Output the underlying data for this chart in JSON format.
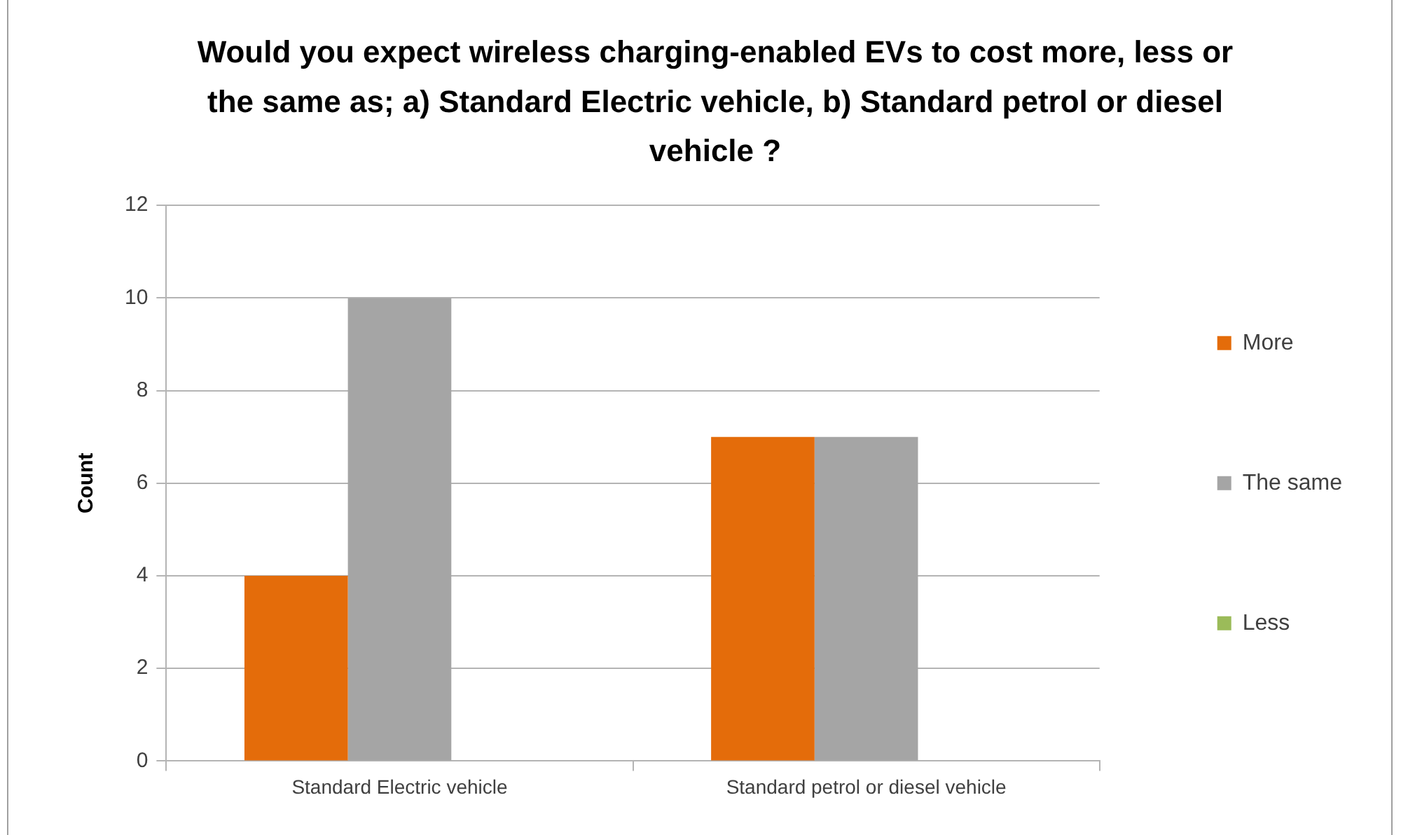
{
  "chart_data": {
    "type": "bar",
    "title": "Would you expect wireless charging-enabled EVs to cost more, less or the same as; a) Standard Electric vehicle, b) Standard petrol or diesel vehicle ?",
    "ylabel": "Count",
    "categories": [
      "Standard Electric vehicle",
      "Standard petrol or diesel vehicle"
    ],
    "series": [
      {
        "name": "More",
        "color": "#e46c0a",
        "values": [
          4,
          7
        ]
      },
      {
        "name": "The same",
        "color": "#a5a5a5",
        "values": [
          10,
          7
        ]
      },
      {
        "name": "Less",
        "color": "#9bbb59",
        "values": [
          0,
          0
        ]
      }
    ],
    "ylim": [
      0,
      12
    ],
    "yticks": [
      0,
      2,
      4,
      6,
      8,
      10,
      12
    ],
    "grid": "y",
    "legend": "right"
  }
}
